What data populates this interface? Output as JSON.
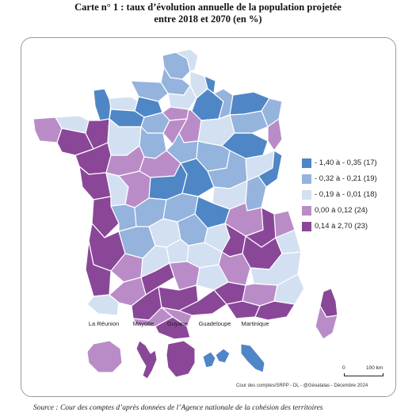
{
  "title": {
    "line1": "Carte n° 1 : taux d’évolution annuelle de la population projetée",
    "line2": "entre 2018 et 2070 (en %)"
  },
  "legend": [
    {
      "label": "- 1,40 à - 0,35 (17)",
      "color": "#4f86c6"
    },
    {
      "label": "- 0,32 à - 0,21 (19)",
      "color": "#94b3dd"
    },
    {
      "label": "- 0,19 à - 0,01 (18)",
      "color": "#d3e0f1"
    },
    {
      "label": "0,00 à 0,12 (24)",
      "color": "#b98cc7"
    },
    {
      "label": "0,14 à 2,70 (23)",
      "color": "#8a4798"
    }
  ],
  "overseas": [
    {
      "label": "La Réunion",
      "color": "#b98cc7"
    },
    {
      "label": "Mayotte",
      "color": "#8a4798"
    },
    {
      "label": "Guyane",
      "color": "#8a4798"
    },
    {
      "label": "Guadeloupe",
      "color": "#4f86c6"
    },
    {
      "label": "Martinique",
      "color": "#4f86c6"
    }
  ],
  "scale": {
    "zero": "0",
    "distance": "100 km"
  },
  "credit": "Cour des comptes/SRPP - DL - @Géoatalas - Décembre 2024",
  "source": "Source : Cour des comptes d’après données de l’Agence nationale de la cohésion des territoires"
}
